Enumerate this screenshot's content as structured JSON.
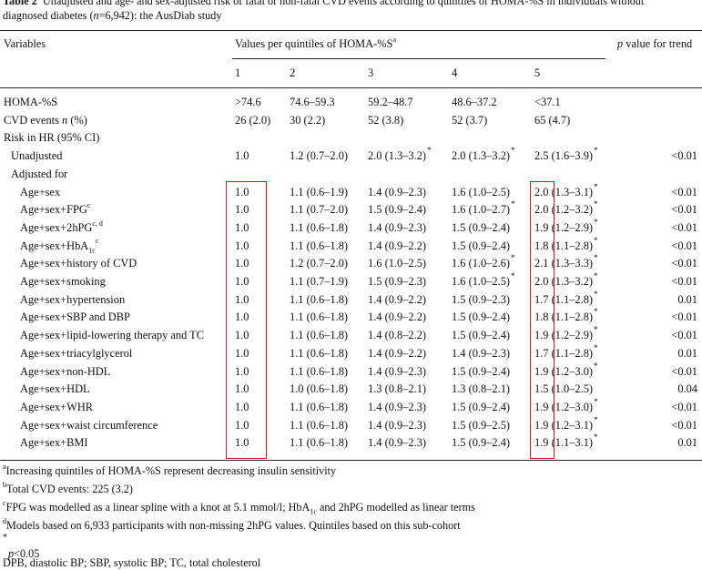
{
  "caption": {
    "label": "Table 2",
    "text_a": "Unadjusted and age- and sex-adjusted risk of fatal or non-fatal CVD events according to quintiles of HOMA-%S in individuals without",
    "text_b": "diagnosed diabetes (",
    "n_italic": "n",
    "text_c": "=6,942): the AusDiab study"
  },
  "header": {
    "variables": "Variables",
    "values_span": "Values per quintiles of HOMA-%S",
    "values_sup": "a",
    "p_label_italic": "p",
    "p_label_rest": " value for trend",
    "quintiles": [
      "1",
      "2",
      "3",
      "4",
      "5"
    ]
  },
  "rows": [
    {
      "var": "HOMA-%S",
      "indent": 0,
      "q1": ">74.6",
      "q2": "74.6–59.3",
      "q3": "59.2–48.7",
      "q4": "48.6–37.2",
      "q5": "<37.1",
      "p": ""
    },
    {
      "var": "CVD events",
      "var_italic": "n",
      "var_tail": " (%)",
      "indent": 0,
      "q1": "26 (2.0)",
      "q2": "30 (2.2)",
      "q3": "52 (3.8)",
      "q4": "52 (3.7)",
      "q5": "65 (4.7)",
      "p": ""
    },
    {
      "var": "Risk in HR (95% CI)",
      "indent": 0,
      "q1": "",
      "q2": "",
      "q3": "",
      "q4": "",
      "q5": "",
      "p": ""
    },
    {
      "var": "Unadjusted",
      "indent": 1,
      "q1": "1.0",
      "q2": "1.2 (0.7–2.0)",
      "q3": "2.0 (1.3–3.2)",
      "q3_star": "*",
      "q4": "2.0 (1.3–3.2)",
      "q4_star": "*",
      "q5": "2.5 (1.6–3.9)",
      "q5_star": "*",
      "p": "<0.01"
    },
    {
      "var": "Adjusted for",
      "indent": 1,
      "q1": "",
      "q2": "",
      "q3": "",
      "q4": "",
      "q5": "",
      "p": ""
    },
    {
      "var": "Age+sex",
      "indent": 2,
      "q1": "1.0",
      "q2": "1.1 (0.6–1.9)",
      "q3": "1.4 (0.9–2.3)",
      "q4": "1.6 (1.0–2.5)",
      "q5": "2.0 (1.3–3.1)",
      "q5_star": "*",
      "p": "<0.01"
    },
    {
      "var": "Age+sex+FPG",
      "var_sup": "c",
      "indent": 2,
      "q1": "1.0",
      "q2": "1.1 (0.7–2.0)",
      "q3": "1.5 (0.9–2.4)",
      "q4": "1.6 (1.0–2.7)",
      "q4_star": "*",
      "q5": "2.0 (1.2–3.2)",
      "q5_star": "*",
      "p": "<0.01"
    },
    {
      "var": "Age+sex+2hPG",
      "var_sup": "c, d",
      "indent": 2,
      "q1": "1.0",
      "q2": "1.1 (0.6–1.8)",
      "q3": "1.4 (0.9–2.3)",
      "q4": "1.5 (0.9–2.4)",
      "q5": "1.9 (1.2–2.9)",
      "q5_star": "*",
      "p": "<0.01"
    },
    {
      "var": "Age+sex+HbA",
      "var_sub": "1c",
      "var_sup": "c",
      "indent": 2,
      "q1": "1.0",
      "q2": "1.1 (0.6–1.8)",
      "q3": "1.4 (0.9–2.2)",
      "q4": "1.5 (0.9–2.4)",
      "q5": "1.8 (1.1–2.8)",
      "q5_star": "*",
      "p": "<0.01"
    },
    {
      "var": "Age+sex+history of CVD",
      "indent": 2,
      "q1": "1.0",
      "q2": "1.2 (0.7–2.0)",
      "q3": "1.6 (1.0–2.5)",
      "q4": "1.6 (1.0–2.6)",
      "q4_star": "*",
      "q5": "2.1 (1.3–3.3)",
      "q5_star": "*",
      "p": "<0.01"
    },
    {
      "var": "Age+sex+smoking",
      "indent": 2,
      "q1": "1.0",
      "q2": "1.1 (0.7–1.9)",
      "q3": "1.5 (0.9–2.3)",
      "q4": "1.6 (1.0–2.5)",
      "q4_star": "*",
      "q5": "2.0 (1.3–3.2)",
      "q5_star": "*",
      "p": "<0.01"
    },
    {
      "var": "Age+sex+hypertension",
      "indent": 2,
      "q1": "1.0",
      "q2": "1.1 (0.6–1.8)",
      "q3": "1.4 (0.9–2.2)",
      "q4": "1.5 (0.9–2.3)",
      "q5": "1.7 (1.1–2.8)",
      "q5_star": "*",
      "p": "0.01"
    },
    {
      "var": "Age+sex+SBP and DBP",
      "indent": 2,
      "q1": "1.0",
      "q2": "1.1 (0.6–1.8)",
      "q3": "1.4 (0.9–2.2)",
      "q4": "1.5 (0.9–2.4)",
      "q5": "1.8 (1.1–2.8)",
      "q5_star": "*",
      "p": "<0.01"
    },
    {
      "var": "Age+sex+lipid-lowering therapy and TC",
      "indent": 2,
      "q1": "1.0",
      "q2": "1.1 (0.6–1.8)",
      "q3": "1.4 (0.8–2.2)",
      "q4": "1.5 (0.9–2.4)",
      "q5": "1.9 (1.2–2.9)",
      "q5_star": "*",
      "p": "<0.01"
    },
    {
      "var": "Age+sex+triacylglycerol",
      "indent": 2,
      "q1": "1.0",
      "q2": "1.1 (0.6–1.8)",
      "q3": "1.4 (0.9–2.2)",
      "q4": "1.4 (0.9–2.3)",
      "q5": "1.7 (1.1–2.8)",
      "q5_star": "*",
      "p": "0.01"
    },
    {
      "var": "Age+sex+non-HDL",
      "indent": 2,
      "q1": "1.0",
      "q2": "1.1 (0.6–1.8)",
      "q3": "1.4 (0.9–2.3)",
      "q4": "1.5 (0.9–2.4)",
      "q5": "1.9 (1.2–3.0)",
      "q5_star": "*",
      "p": "<0.01"
    },
    {
      "var": "Age+sex+HDL",
      "indent": 2,
      "q1": "1.0",
      "q2": "1.0 (0.6–1.8)",
      "q3": "1.3 (0.8–2.1)",
      "q4": "1.3 (0.8–2.1)",
      "q5": "1.5 (1.0–2.5)",
      "p": "0.04"
    },
    {
      "var": "Age+sex+WHR",
      "indent": 2,
      "q1": "1.0",
      "q2": "1.1 (0.6–1.8)",
      "q3": "1.4 (0.9–2.3)",
      "q4": "1.5 (0.9–2.4)",
      "q5": "1.9 (1.2–3.0)",
      "q5_star": "*",
      "p": "<0.01"
    },
    {
      "var": "Age+sex+waist circumference",
      "indent": 2,
      "q1": "1.0",
      "q2": "1.1 (0.6–1.8)",
      "q3": "1.4 (0.9–2.3)",
      "q4": "1.5 (0.9–2.5)",
      "q5": "1.9 (1.2–3.1)",
      "q5_star": "*",
      "p": "<0.01"
    },
    {
      "var": "Age+sex+BMI",
      "indent": 2,
      "q1": "1.0",
      "q2": "1.1 (0.6–1.8)",
      "q3": "1.4 (0.9–2.3)",
      "q4": "1.5 (0.9–2.4)",
      "q5": "1.9 (1.1–3.1)",
      "q5_star": "*",
      "p": "0.01"
    }
  ],
  "highlight_color": "#d9141b",
  "footnotes": {
    "a_mark": "a",
    "a": "Increasing quintiles of HOMA-%S represent decreasing insulin sensitivity",
    "b_mark": "b",
    "b": "Total CVD events: 225 (3.2)",
    "c_mark": "c",
    "c_1": "FPG was modelled as a linear spline with a knot at 5.1 mmol/l; HbA",
    "c_sub": "1c",
    "c_2": " and 2hPG modelled as linear terms",
    "d_mark": "d",
    "d": "Models based on 6,933 participants with non-missing 2hPG values. Quintiles based on this sub-cohort",
    "star_mark": "*",
    "star_italic": "p",
    "star_rest": "<0.05",
    "abbrev": "DPB, diastolic BP; SBP, systolic BP; TC, total cholesterol"
  }
}
